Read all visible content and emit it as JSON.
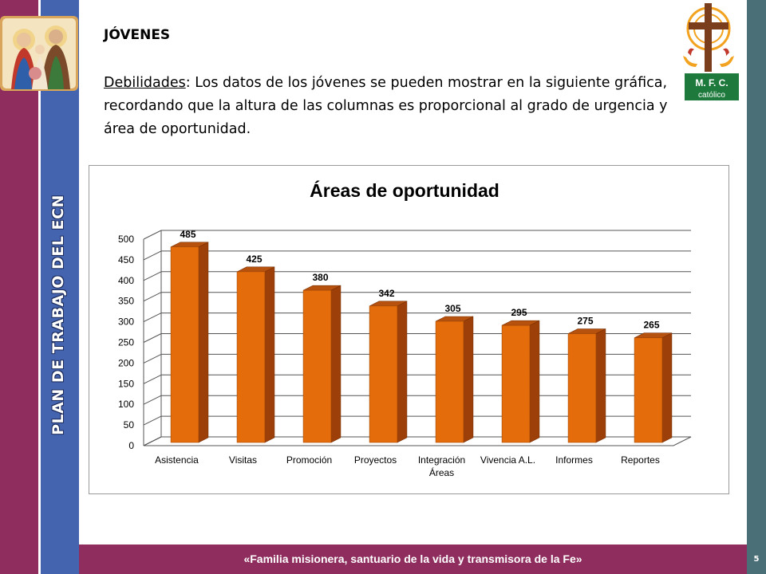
{
  "sidebar": {
    "title": "PLAN DE TRABAJO DEL ECN"
  },
  "content": {
    "heading": "JÓVENES",
    "label": "Debilidades",
    "text": ": Los datos de los jóvenes se pueden mostrar en la siguiente gráfica, recordando que la altura de las columnas es proporcional al grado de urgencia y área de oportunidad."
  },
  "logo": {
    "line1": "M. F. C.",
    "line2": "católico"
  },
  "footer": {
    "text": "«Familia misionera, santuario de la vida y transmisora de la Fe»",
    "page": "5"
  },
  "colors": {
    "maroon": "#8e2d5e",
    "blue": "#4564b0",
    "teal": "#4a6f76",
    "bar": "#e46c0a",
    "logo_green": "#1e7a3c",
    "logo_orange": "#f2a21e"
  },
  "chart_data": {
    "type": "bar",
    "title": "Áreas de oportunidad",
    "categories": [
      "Asistencia",
      "Visitas",
      "Promoción",
      "Proyectos",
      "Integración Áreas",
      "Vivencia A.L.",
      "Informes",
      "Reportes"
    ],
    "values": [
      485,
      425,
      380,
      342,
      305,
      295,
      275,
      265
    ],
    "ylim": [
      0,
      500
    ],
    "yticks": [
      0,
      50,
      100,
      150,
      200,
      250,
      300,
      350,
      400,
      450,
      500
    ],
    "grid": true,
    "xlabel": "",
    "ylabel": ""
  }
}
